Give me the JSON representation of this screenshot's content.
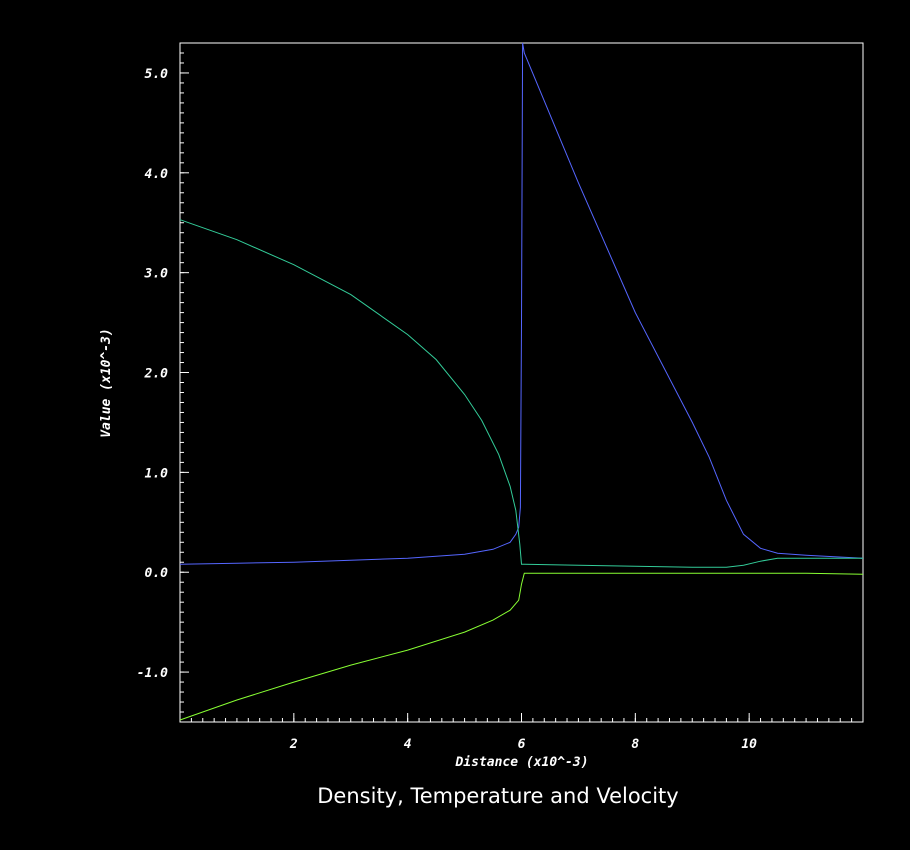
{
  "chart_data": {
    "type": "line",
    "title": "Density, Temperature and Velocity",
    "xlabel": "Distance (x10^-3)",
    "ylabel": "Value (x10^-3)",
    "xlim": [
      0,
      12
    ],
    "ylim": [
      -1.5,
      5.3
    ],
    "x_ticks": [
      {
        "value": 2,
        "label": "2"
      },
      {
        "value": 4,
        "label": "4"
      },
      {
        "value": 6,
        "label": "6"
      },
      {
        "value": 8,
        "label": "8"
      },
      {
        "value": 10,
        "label": "10"
      }
    ],
    "y_ticks": [
      {
        "value": -1.0,
        "label": "-1.0"
      },
      {
        "value": 0.0,
        "label": "0.0"
      },
      {
        "value": 1.0,
        "label": "1.0"
      },
      {
        "value": 2.0,
        "label": "2.0"
      },
      {
        "value": 3.0,
        "label": "3.0"
      },
      {
        "value": 4.0,
        "label": "4.0"
      },
      {
        "value": 5.0,
        "label": "5.0"
      }
    ],
    "grid": false,
    "series": [
      {
        "color": "#5566ff",
        "x": [
          0,
          1,
          2,
          3,
          4,
          5,
          5.5,
          5.8,
          5.9,
          5.95,
          5.98,
          6.0,
          6.02,
          6.05,
          7,
          8,
          9,
          9.3,
          9.6,
          9.9,
          10.2,
          10.5,
          11,
          11.5,
          12
        ],
        "y": [
          0.08,
          0.09,
          0.1,
          0.12,
          0.14,
          0.18,
          0.23,
          0.3,
          0.38,
          0.45,
          0.65,
          2.5,
          5.3,
          5.2,
          3.9,
          2.6,
          1.5,
          1.15,
          0.72,
          0.38,
          0.24,
          0.19,
          0.17,
          0.155,
          0.14
        ]
      },
      {
        "color": "#33cc99",
        "x": [
          0,
          1,
          2,
          3,
          4,
          4.5,
          5,
          5.3,
          5.6,
          5.8,
          5.9,
          5.97,
          6.0,
          6.05,
          7,
          8,
          9,
          9.6,
          9.9,
          10.2,
          10.5,
          11,
          12
        ],
        "y": [
          3.53,
          3.33,
          3.08,
          2.78,
          2.38,
          2.13,
          1.78,
          1.52,
          1.18,
          0.86,
          0.62,
          0.28,
          0.08,
          0.08,
          0.07,
          0.06,
          0.05,
          0.05,
          0.07,
          0.11,
          0.14,
          0.14,
          0.14
        ]
      },
      {
        "color": "#88ff33",
        "x": [
          0,
          1,
          2,
          3,
          4,
          5,
          5.5,
          5.8,
          5.95,
          6.0,
          6.05,
          7,
          8,
          9,
          10,
          11,
          12
        ],
        "y": [
          -1.48,
          -1.28,
          -1.1,
          -0.93,
          -0.78,
          -0.6,
          -0.48,
          -0.38,
          -0.28,
          -0.12,
          -0.01,
          -0.01,
          -0.01,
          -0.01,
          -0.01,
          -0.01,
          -0.02
        ]
      }
    ]
  }
}
